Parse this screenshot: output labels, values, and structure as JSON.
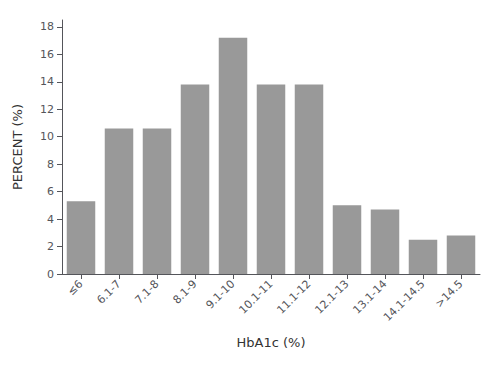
{
  "chart_data": {
    "type": "bar",
    "categories": [
      "≤6",
      "6.1-7",
      "7.1-8",
      "8.1-9",
      "9.1-10",
      "10.1-11",
      "11.1-12",
      "12.1-13",
      "13.1-14",
      "14.1-14.5",
      ">14.5"
    ],
    "values": [
      5.3,
      10.6,
      10.6,
      13.8,
      17.2,
      13.8,
      13.8,
      5.0,
      4.7,
      2.5,
      2.8
    ],
    "color": "#999999",
    "xlabel": "HbA1c (%)",
    "ylabel": "PERCENT (%)",
    "ylim": [
      0,
      18.5
    ],
    "yticks": [
      0,
      2,
      4,
      6,
      8,
      10,
      12,
      14,
      16,
      18
    ],
    "grid": false
  }
}
